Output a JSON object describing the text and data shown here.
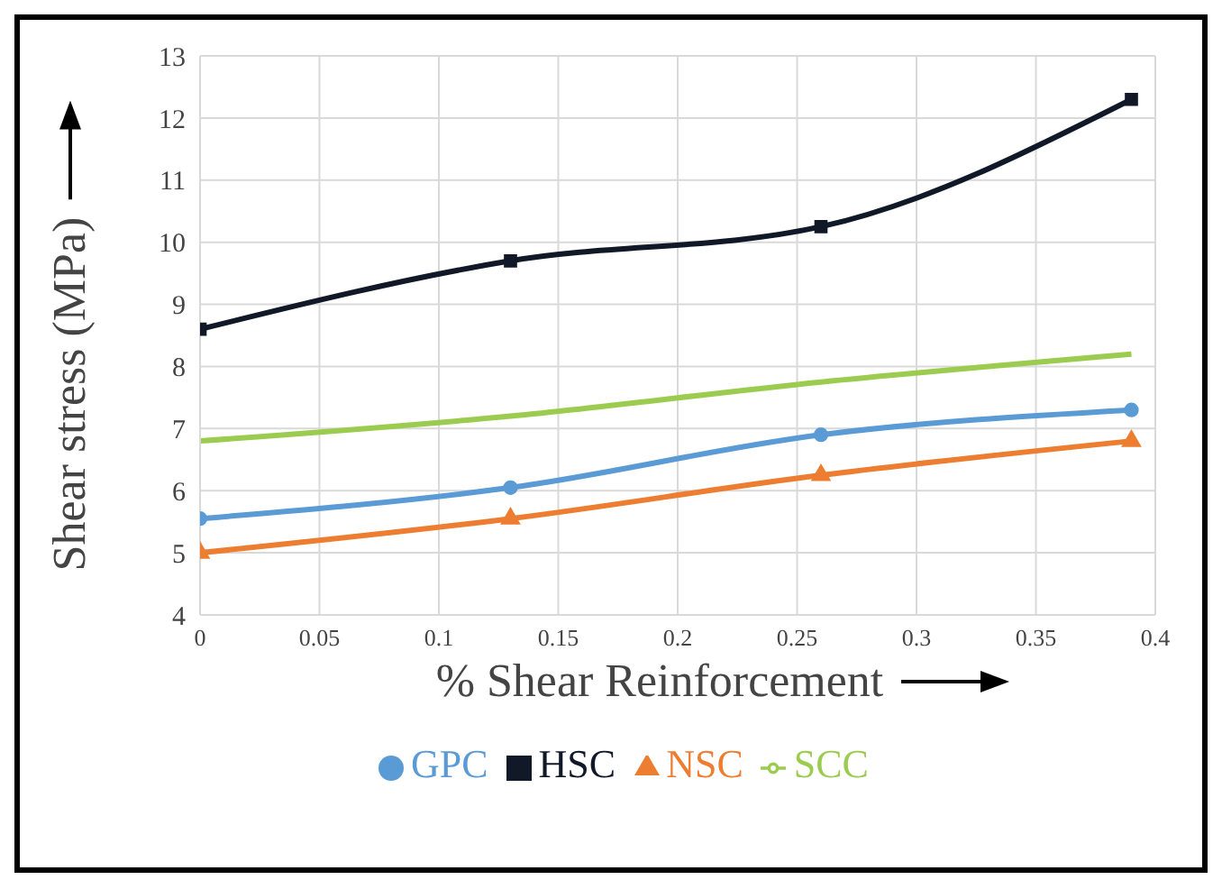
{
  "chart_data": {
    "type": "line",
    "xlabel": "% Shear Reinforcement",
    "ylabel": "Shear stress (MPa)",
    "x": [
      0,
      0.13,
      0.26,
      0.39
    ],
    "series": [
      {
        "name": "NSC",
        "color": "#ed7d31",
        "marker": "triangle",
        "values": [
          5.0,
          5.55,
          6.25,
          6.8
        ]
      },
      {
        "name": "HSC",
        "color": "#111827",
        "marker": "square",
        "values": [
          8.6,
          9.7,
          10.25,
          12.3
        ]
      },
      {
        "name": "SCC",
        "color": "#9bcc50",
        "marker": "none",
        "values": [
          6.8,
          7.2,
          7.75,
          8.2
        ]
      },
      {
        "name": "GPC",
        "color": "#5b9bd5",
        "marker": "circle",
        "values": [
          5.55,
          6.05,
          6.9,
          7.3
        ]
      }
    ],
    "xlim": [
      0,
      0.4
    ],
    "xticks": [
      0,
      0.05,
      0.1,
      0.15,
      0.2,
      0.25,
      0.3,
      0.35,
      0.4
    ],
    "ylim": [
      4,
      13
    ],
    "yticks": [
      4,
      5,
      6,
      7,
      8,
      9,
      10,
      11,
      12,
      13
    ],
    "grid": true,
    "legend": "bottom"
  }
}
